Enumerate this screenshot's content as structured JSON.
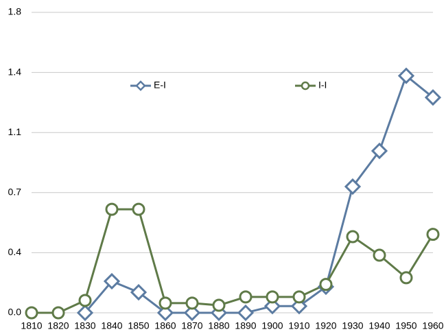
{
  "chart_data": {
    "type": "line",
    "categories": [
      "1810",
      "1820",
      "1830",
      "1840",
      "1850",
      "1860",
      "1870",
      "1880",
      "1890",
      "1900",
      "1910",
      "1920",
      "1930",
      "1940",
      "1950",
      "1960"
    ],
    "series": [
      {
        "name": "E-I",
        "color": "#5b7ba1",
        "marker": "diamond",
        "values": [
          null,
          null,
          0,
          0.189,
          0.123,
          0,
          0,
          0,
          0,
          0.04,
          0.04,
          0.156,
          0.756,
          0.97,
          1.42,
          1.29
        ]
      },
      {
        "name": "I-I",
        "color": "#5f7a48",
        "marker": "circle",
        "values": [
          0,
          0,
          0.074,
          0.62,
          0.62,
          0.058,
          0.058,
          0.045,
          0.095,
          0.095,
          0.095,
          0.17,
          0.456,
          0.345,
          0.21,
          0.47
        ]
      }
    ],
    "ylim": [
      0,
      1.8
    ],
    "yticks": [
      {
        "value": 0,
        "label": "0.0"
      },
      {
        "value": 0.36,
        "label": "0.4"
      },
      {
        "value": 0.72,
        "label": "0.7"
      },
      {
        "value": 1.08,
        "label": "1.1"
      },
      {
        "value": 1.44,
        "label": "1.4"
      },
      1.8
    ],
    "grid": true,
    "legend": "top"
  }
}
